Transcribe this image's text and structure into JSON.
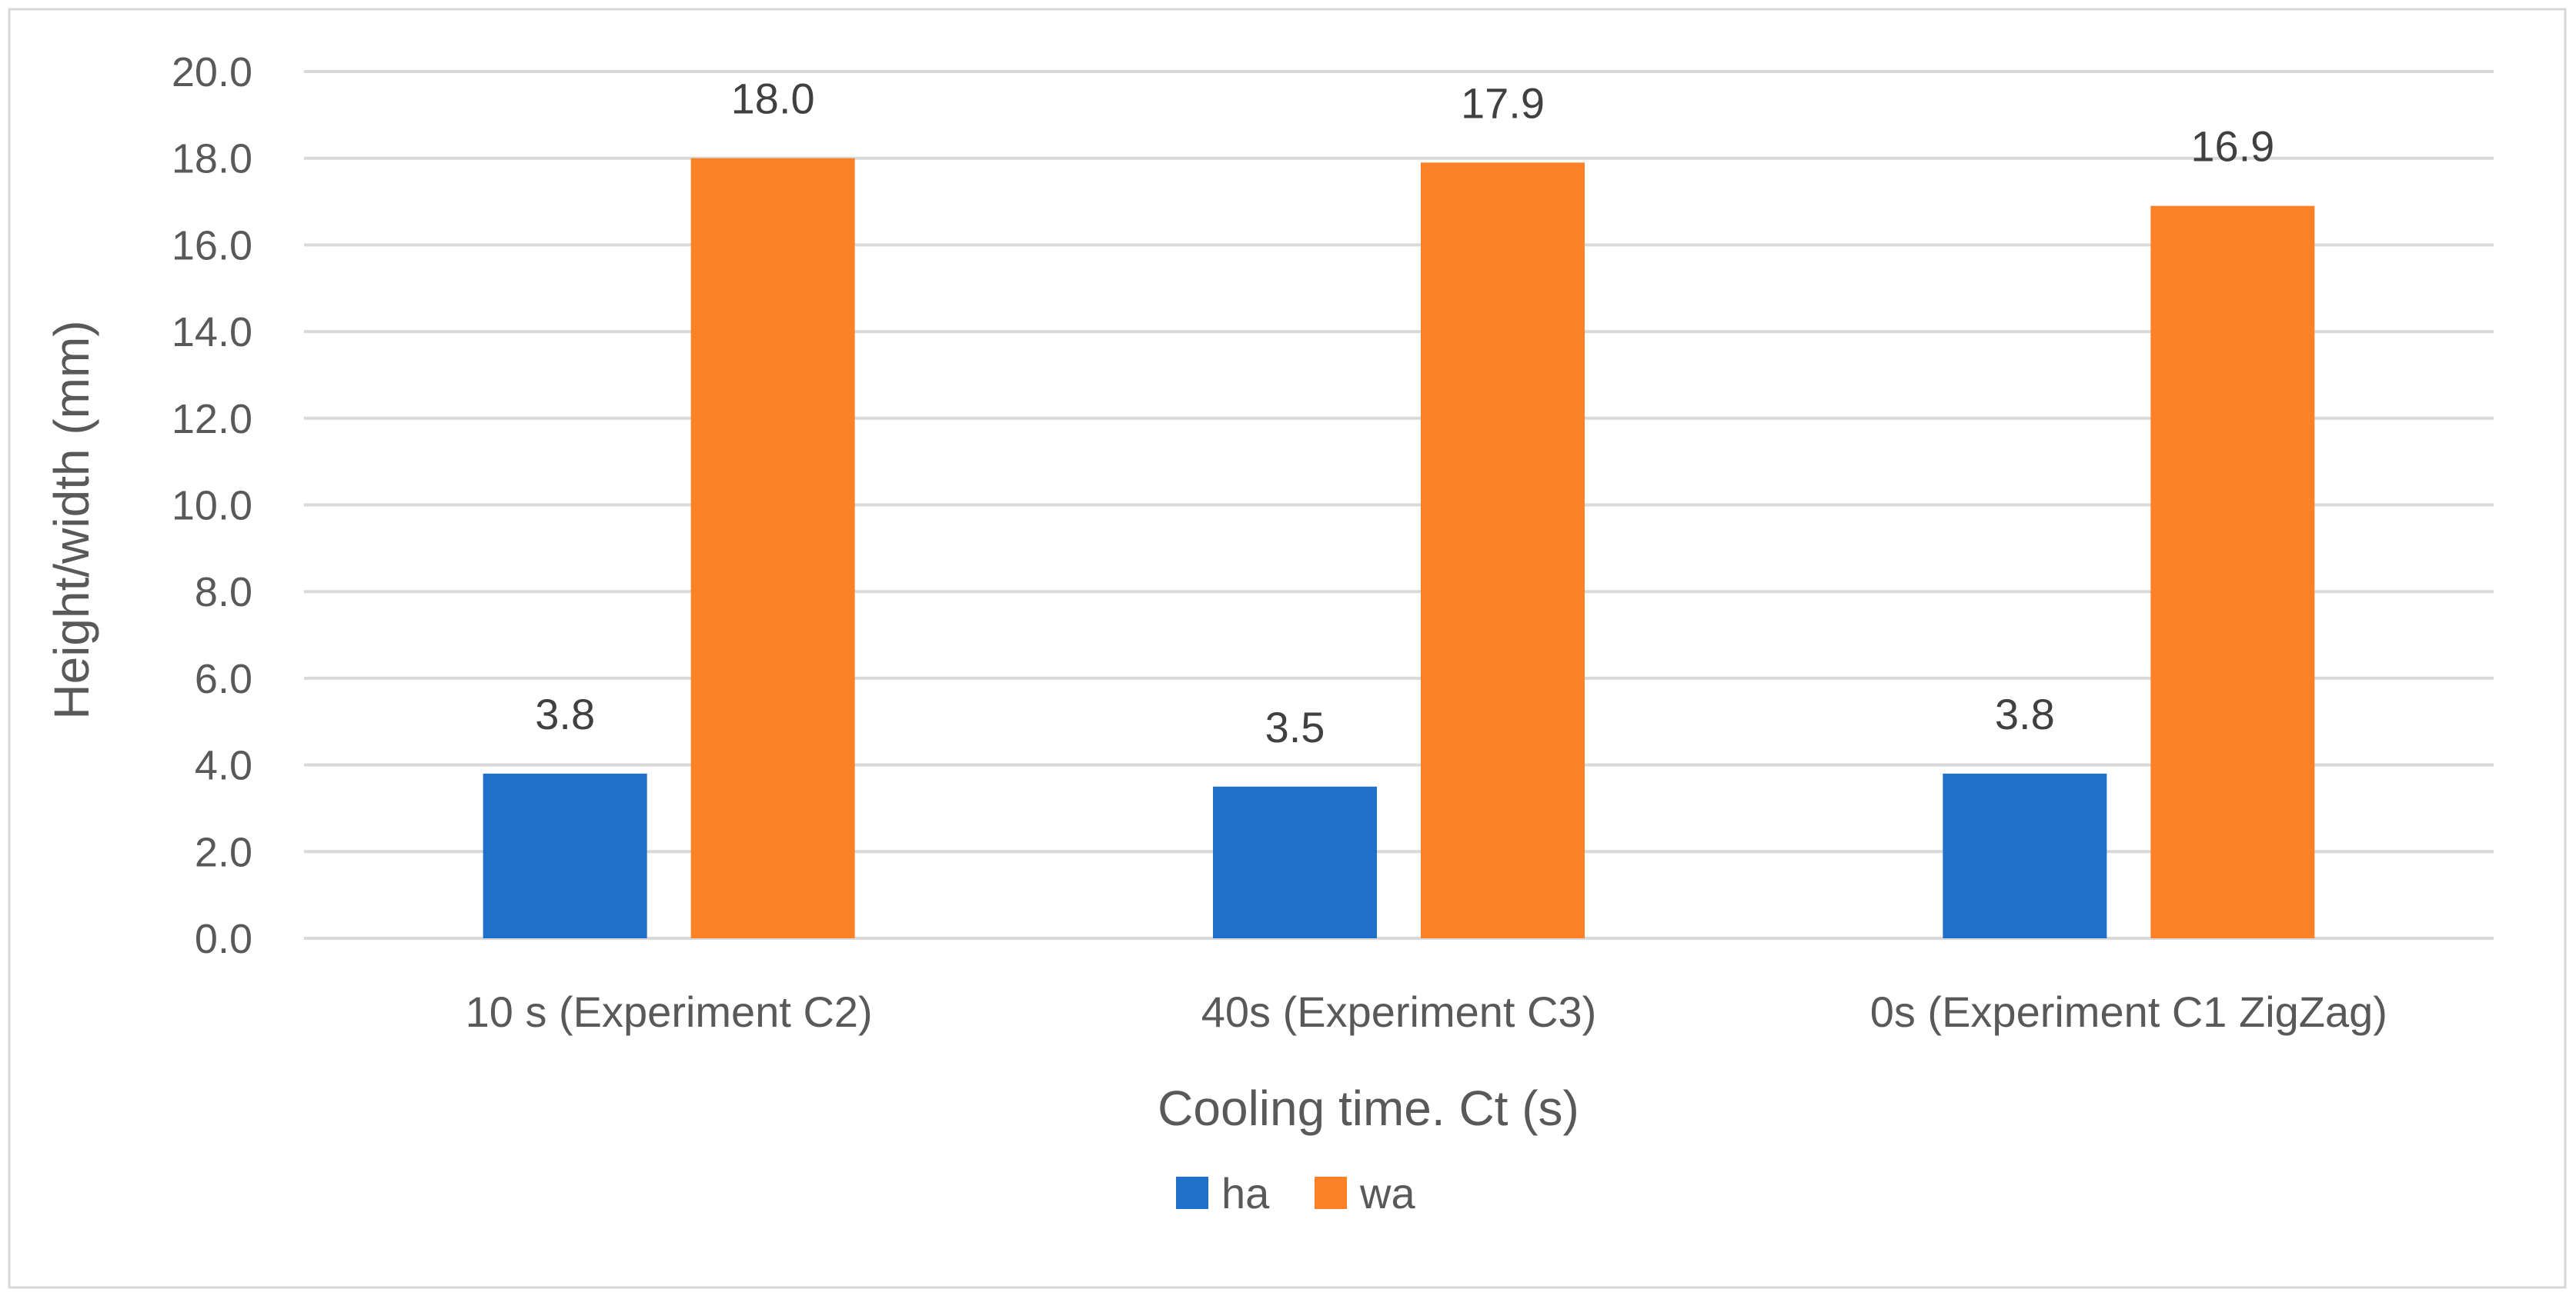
{
  "chart_data": {
    "type": "bar",
    "title": "",
    "xlabel": "Cooling time. Ct (s)",
    "ylabel": "Height/width (mm)",
    "categories": [
      "10 s (Experiment C2)",
      "40s (Experiment C3)",
      "0s (Experiment C1 ZigZag)"
    ],
    "series": [
      {
        "name": "ha",
        "color": "#1f70c8",
        "values": [
          3.8,
          3.5,
          3.8
        ]
      },
      {
        "name": "wa",
        "color": "#fd8127",
        "values": [
          18.0,
          17.9,
          16.9
        ]
      }
    ],
    "ylim": [
      0,
      20
    ],
    "yticks": [
      "0.0",
      "2.0",
      "4.0",
      "6.0",
      "8.0",
      "10.0",
      "12.0",
      "14.0",
      "16.0",
      "18.0",
      "20.0"
    ],
    "grid": true,
    "legend_position": "bottom"
  }
}
